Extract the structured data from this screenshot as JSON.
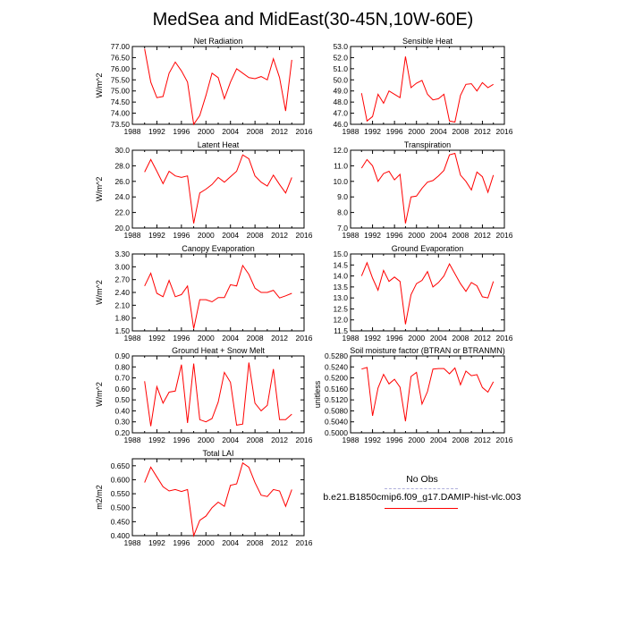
{
  "figure_title": "MedSea and MidEast(30-45N,10W-60E)",
  "chart_data": [
    {
      "type": "line",
      "title": "Net Radiation",
      "ylabel": "W/m^2",
      "ylim": [
        73.5,
        77.0
      ],
      "yticks": [
        "77.00",
        "76.50",
        "76.00",
        "75.50",
        "75.00",
        "74.50",
        "74.00",
        "73.50"
      ],
      "xlim": [
        1988,
        2016
      ],
      "xticks": [
        "1988",
        "1992",
        "1996",
        "2000",
        "2004",
        "2008",
        "2012",
        "2016"
      ],
      "minor_xticks": [
        1990,
        1994,
        1998,
        2002,
        2006,
        2010,
        2014
      ],
      "x": [
        1990,
        1991,
        1992,
        1993,
        1994,
        1995,
        1996,
        1997,
        1998,
        1999,
        2000,
        2001,
        2002,
        2003,
        2004,
        2005,
        2006,
        2007,
        2008,
        2009,
        2010,
        2011,
        2012,
        2013,
        2014
      ],
      "series": [
        {
          "values": [
            76.9,
            75.4,
            74.7,
            74.75,
            75.8,
            76.3,
            75.9,
            75.4,
            73.5,
            73.9,
            74.8,
            75.8,
            75.6,
            74.65,
            75.4,
            76.0,
            75.8,
            75.6,
            75.55,
            75.65,
            75.5,
            76.45,
            75.6,
            74.1,
            76.4
          ],
          "color": "#ff0000"
        }
      ]
    },
    {
      "type": "line",
      "title": "Sensible Heat",
      "ylabel": "",
      "ylim": [
        46.0,
        53.0
      ],
      "yticks": [
        "53.0",
        "52.0",
        "51.0",
        "50.0",
        "49.0",
        "48.0",
        "47.0",
        "46.0"
      ],
      "xlim": [
        1988,
        2016
      ],
      "xticks": [
        "1988",
        "1992",
        "1996",
        "2000",
        "2004",
        "2008",
        "2012",
        "2016"
      ],
      "minor_xticks": [
        1990,
        1994,
        1998,
        2002,
        2006,
        2010,
        2014
      ],
      "x": [
        1990,
        1991,
        1992,
        1993,
        1994,
        1995,
        1996,
        1997,
        1998,
        1999,
        2000,
        2001,
        2002,
        2003,
        2004,
        2005,
        2006,
        2007,
        2008,
        2009,
        2010,
        2011,
        2012,
        2013,
        2014
      ],
      "series": [
        {
          "values": [
            48.8,
            46.3,
            46.7,
            48.7,
            47.9,
            49.0,
            48.7,
            48.4,
            52.1,
            49.3,
            49.7,
            49.95,
            48.7,
            48.2,
            48.3,
            48.7,
            46.3,
            46.2,
            48.6,
            49.6,
            49.65,
            49.0,
            49.75,
            49.3,
            49.6
          ],
          "color": "#ff0000"
        }
      ]
    },
    {
      "type": "line",
      "title": "Latent Heat",
      "ylabel": "W/m^2",
      "ylim": [
        20.0,
        30.0
      ],
      "yticks": [
        "30.0",
        "28.0",
        "26.0",
        "24.0",
        "22.0",
        "20.0"
      ],
      "xlim": [
        1988,
        2016
      ],
      "xticks": [
        "1988",
        "1992",
        "1996",
        "2000",
        "2004",
        "2008",
        "2012",
        "2016"
      ],
      "minor_xticks": [
        1990,
        1994,
        1998,
        2002,
        2006,
        2010,
        2014
      ],
      "x": [
        1990,
        1991,
        1992,
        1993,
        1994,
        1995,
        1996,
        1997,
        1998,
        1999,
        2000,
        2001,
        2002,
        2003,
        2004,
        2005,
        2006,
        2007,
        2008,
        2009,
        2010,
        2011,
        2012,
        2013,
        2014
      ],
      "series": [
        {
          "values": [
            27.2,
            28.8,
            27.3,
            25.7,
            27.3,
            26.7,
            26.5,
            26.7,
            20.6,
            24.5,
            25.0,
            25.6,
            26.5,
            25.9,
            26.6,
            27.3,
            29.4,
            28.9,
            26.7,
            25.9,
            25.4,
            26.8,
            25.6,
            24.5,
            26.5
          ],
          "color": "#ff0000"
        }
      ]
    },
    {
      "type": "line",
      "title": "Transpiration",
      "ylabel": "",
      "ylim": [
        7.0,
        12.0
      ],
      "yticks": [
        "12.0",
        "11.0",
        "10.0",
        "9.0",
        "8.0",
        "7.0"
      ],
      "xlim": [
        1988,
        2016
      ],
      "xticks": [
        "1988",
        "1992",
        "1996",
        "2000",
        "2004",
        "2008",
        "2012",
        "2016"
      ],
      "minor_xticks": [
        1990,
        1994,
        1998,
        2002,
        2006,
        2010,
        2014
      ],
      "x": [
        1990,
        1991,
        1992,
        1993,
        1994,
        1995,
        1996,
        1997,
        1998,
        1999,
        2000,
        2001,
        2002,
        2003,
        2004,
        2005,
        2006,
        2007,
        2008,
        2009,
        2010,
        2011,
        2012,
        2013,
        2014
      ],
      "series": [
        {
          "values": [
            10.85,
            11.4,
            11.0,
            10.0,
            10.5,
            10.65,
            10.1,
            10.45,
            7.3,
            9.0,
            9.05,
            9.55,
            9.95,
            10.05,
            10.35,
            10.7,
            11.7,
            11.8,
            10.4,
            10.0,
            9.45,
            10.6,
            10.3,
            9.3,
            10.4
          ],
          "color": "#ff0000"
        }
      ]
    },
    {
      "type": "line",
      "title": "Canopy Evaporation",
      "ylabel": "W/m^2",
      "ylim": [
        1.5,
        3.3
      ],
      "yticks": [
        "3.30",
        "3.00",
        "2.70",
        "2.40",
        "2.10",
        "1.80",
        "1.50"
      ],
      "xlim": [
        1988,
        2016
      ],
      "xticks": [
        "1988",
        "1992",
        "1996",
        "2000",
        "2004",
        "2008",
        "2012",
        "2016"
      ],
      "minor_xticks": [
        1990,
        1994,
        1998,
        2002,
        2006,
        2010,
        2014
      ],
      "x": [
        1990,
        1991,
        1992,
        1993,
        1994,
        1995,
        1996,
        1997,
        1998,
        1999,
        2000,
        2001,
        2002,
        2003,
        2004,
        2005,
        2006,
        2007,
        2008,
        2009,
        2010,
        2011,
        2012,
        2013,
        2014
      ],
      "series": [
        {
          "values": [
            2.55,
            2.85,
            2.38,
            2.3,
            2.68,
            2.3,
            2.35,
            2.55,
            1.55,
            2.23,
            2.23,
            2.18,
            2.28,
            2.28,
            2.58,
            2.55,
            3.03,
            2.82,
            2.5,
            2.4,
            2.4,
            2.45,
            2.27,
            2.32,
            2.38
          ],
          "color": "#ff0000"
        }
      ]
    },
    {
      "type": "line",
      "title": "Ground Evaporation",
      "ylabel": "",
      "ylim": [
        11.5,
        15.0
      ],
      "yticks": [
        "15.0",
        "14.5",
        "14.0",
        "13.5",
        "13.0",
        "12.5",
        "12.0",
        "11.5"
      ],
      "xlim": [
        1988,
        2016
      ],
      "xticks": [
        "1988",
        "1992",
        "1996",
        "2000",
        "2004",
        "2008",
        "2012",
        "2016"
      ],
      "minor_xticks": [
        1990,
        1994,
        1998,
        2002,
        2006,
        2010,
        2014
      ],
      "x": [
        1990,
        1991,
        1992,
        1993,
        1994,
        1995,
        1996,
        1997,
        1998,
        1999,
        2000,
        2001,
        2002,
        2003,
        2004,
        2005,
        2006,
        2007,
        2008,
        2009,
        2010,
        2011,
        2012,
        2013,
        2014
      ],
      "series": [
        {
          "values": [
            14.0,
            14.6,
            13.9,
            13.35,
            14.25,
            13.75,
            13.95,
            13.75,
            11.8,
            13.15,
            13.65,
            13.8,
            14.2,
            13.5,
            13.7,
            14.0,
            14.55,
            14.1,
            13.65,
            13.3,
            13.7,
            13.55,
            13.05,
            13.0,
            13.75
          ],
          "color": "#ff0000"
        }
      ]
    },
    {
      "type": "line",
      "title": "Ground Heat + Snow Melt",
      "ylabel": "W/m^2",
      "ylim": [
        0.2,
        0.9
      ],
      "yticks": [
        "0.90",
        "0.80",
        "0.70",
        "0.60",
        "0.50",
        "0.40",
        "0.30",
        "0.20"
      ],
      "xlim": [
        1988,
        2016
      ],
      "xticks": [
        "1988",
        "1992",
        "1996",
        "2000",
        "2004",
        "2008",
        "2012",
        "2016"
      ],
      "minor_xticks": [
        1990,
        1994,
        1998,
        2002,
        2006,
        2010,
        2014
      ],
      "x": [
        1990,
        1991,
        1992,
        1993,
        1994,
        1995,
        1996,
        1997,
        1998,
        1999,
        2000,
        2001,
        2002,
        2003,
        2004,
        2005,
        2006,
        2007,
        2008,
        2009,
        2010,
        2011,
        2012,
        2013,
        2014
      ],
      "series": [
        {
          "values": [
            0.67,
            0.26,
            0.62,
            0.47,
            0.57,
            0.58,
            0.82,
            0.29,
            0.83,
            0.32,
            0.3,
            0.33,
            0.48,
            0.75,
            0.66,
            0.27,
            0.28,
            0.84,
            0.47,
            0.4,
            0.45,
            0.78,
            0.32,
            0.32,
            0.37
          ],
          "color": "#ff0000"
        }
      ]
    },
    {
      "type": "line",
      "title": "Soil moisture factor (BTRAN or BTRANMN)",
      "ylabel": "unitless",
      "ylim": [
        0.5,
        0.528
      ],
      "yticks": [
        "0.5280",
        "0.5240",
        "0.5200",
        "0.5160",
        "0.5120",
        "0.5080",
        "0.5040",
        "0.5000"
      ],
      "xlim": [
        1988,
        2016
      ],
      "xticks": [
        "1988",
        "1992",
        "1996",
        "2000",
        "2004",
        "2008",
        "2012",
        "2016"
      ],
      "minor_xticks": [
        1990,
        1994,
        1998,
        2002,
        2006,
        2010,
        2014
      ],
      "x": [
        1990,
        1991,
        1992,
        1993,
        1994,
        1995,
        1996,
        1997,
        1998,
        1999,
        2000,
        2001,
        2002,
        2003,
        2004,
        2005,
        2006,
        2007,
        2008,
        2009,
        2010,
        2011,
        2012,
        2013,
        2014
      ],
      "series": [
        {
          "values": [
            0.5232,
            0.5238,
            0.5062,
            0.5163,
            0.5213,
            0.5178,
            0.5195,
            0.5166,
            0.5042,
            0.5205,
            0.522,
            0.5105,
            0.515,
            0.5232,
            0.5234,
            0.5234,
            0.5215,
            0.5236,
            0.5175,
            0.5225,
            0.5208,
            0.5212,
            0.5165,
            0.5148,
            0.5186
          ],
          "color": "#ff0000"
        }
      ]
    },
    {
      "type": "line",
      "title": "Total LAI",
      "ylabel": "m2/m2",
      "ylim": [
        0.4,
        0.675
      ],
      "yticks": [
        "0.650",
        "0.600",
        "0.550",
        "0.500",
        "0.450",
        "0.400"
      ],
      "xlim": [
        1988,
        2016
      ],
      "xticks": [
        "1988",
        "1992",
        "1996",
        "2000",
        "2004",
        "2008",
        "2012",
        "2016"
      ],
      "minor_xticks": [
        1990,
        1994,
        1998,
        2002,
        2006,
        2010,
        2014
      ],
      "x": [
        1990,
        1991,
        1992,
        1993,
        1994,
        1995,
        1996,
        1997,
        1998,
        1999,
        2000,
        2001,
        2002,
        2003,
        2004,
        2005,
        2006,
        2007,
        2008,
        2009,
        2010,
        2011,
        2012,
        2013,
        2014
      ],
      "series": [
        {
          "values": [
            0.59,
            0.645,
            0.61,
            0.575,
            0.56,
            0.565,
            0.558,
            0.565,
            0.4,
            0.455,
            0.47,
            0.5,
            0.52,
            0.505,
            0.58,
            0.585,
            0.66,
            0.645,
            0.59,
            0.545,
            0.54,
            0.565,
            0.56,
            0.505,
            0.565
          ],
          "color": "#ff0000"
        }
      ]
    }
  ],
  "legend": {
    "obs_label": "No Obs",
    "obs_color": "#b0b0dc",
    "model_label": "b.e21.B1850cmip6.f09_g17.DAMIP-hist-vlc.003",
    "model_color": "#ff0000"
  }
}
